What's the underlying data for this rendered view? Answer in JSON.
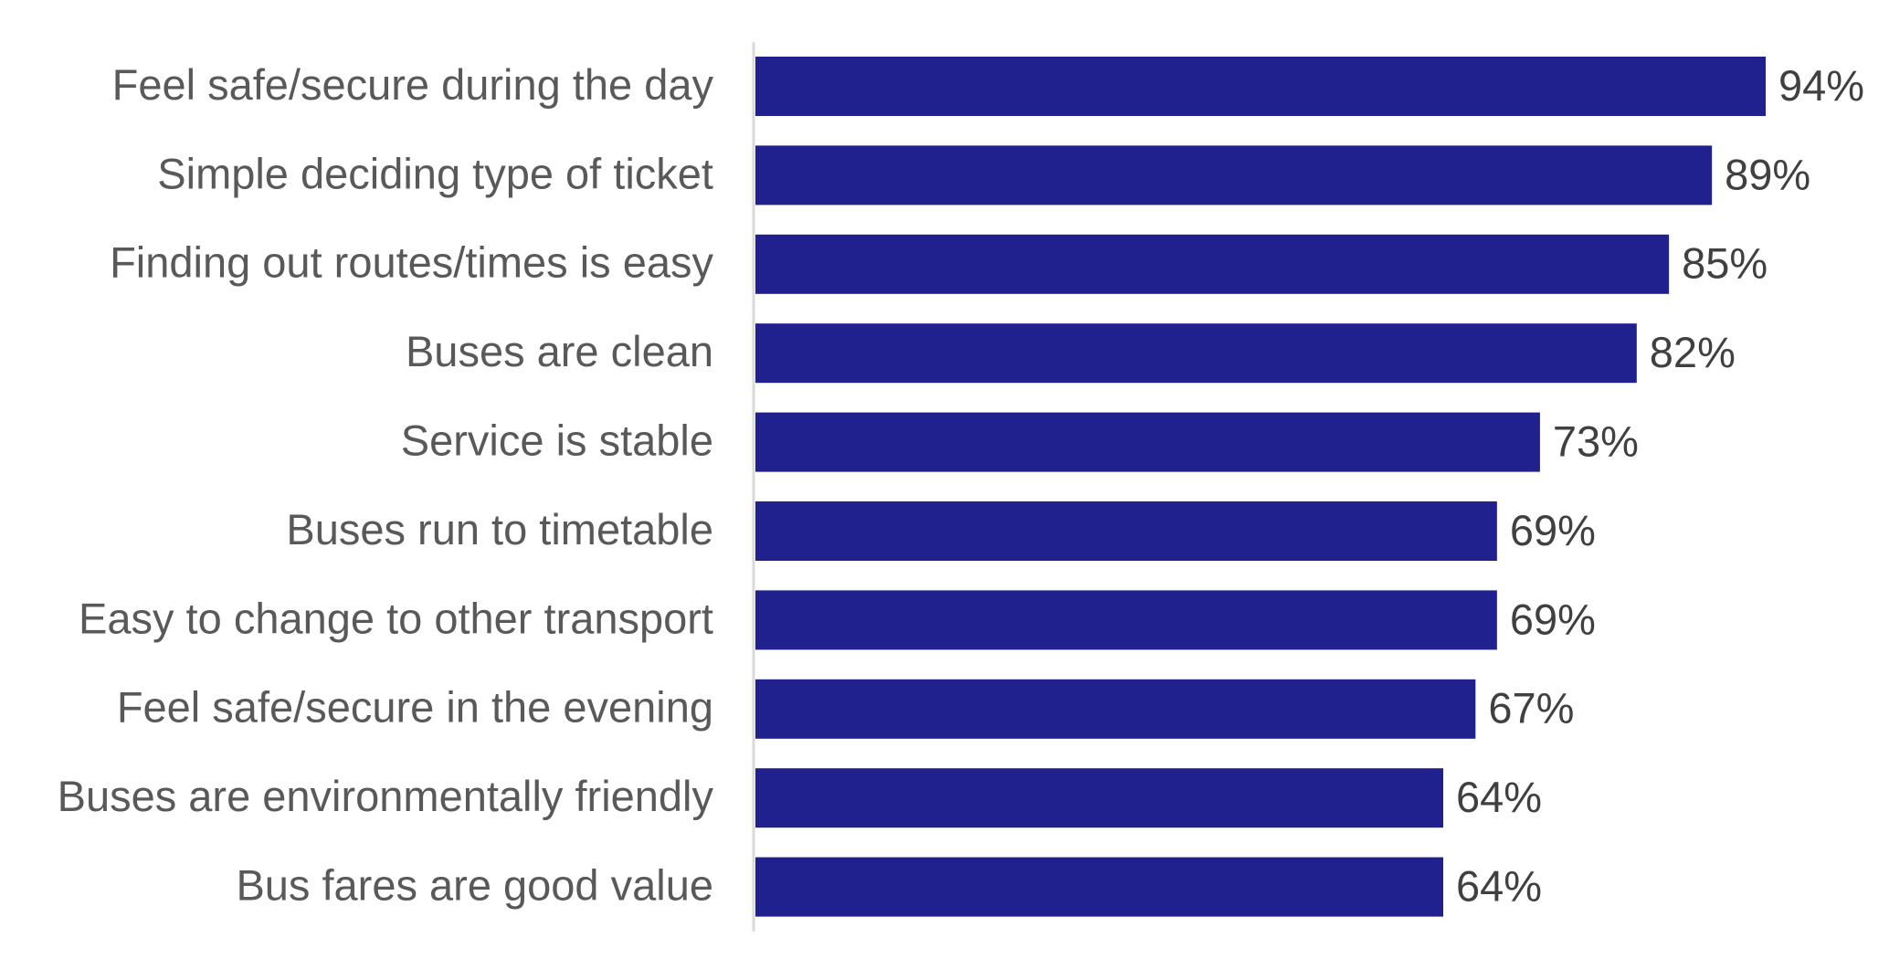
{
  "chart_data": {
    "type": "bar",
    "orientation": "horizontal",
    "categories": [
      "Feel safe/secure during the day",
      "Simple deciding type of ticket",
      "Finding out routes/times is easy",
      "Buses are clean",
      "Service is stable",
      "Buses run to timetable",
      "Easy to change to other transport",
      "Feel safe/secure in the evening",
      "Buses are environmentally friendly",
      "Bus fares are good value"
    ],
    "values": [
      94,
      89,
      85,
      82,
      73,
      69,
      69,
      67,
      64,
      64
    ],
    "value_labels": [
      "94%",
      "89%",
      "85%",
      "82%",
      "73%",
      "69%",
      "69%",
      "67%",
      "64%",
      "64%"
    ],
    "color": "#21208f"
  }
}
